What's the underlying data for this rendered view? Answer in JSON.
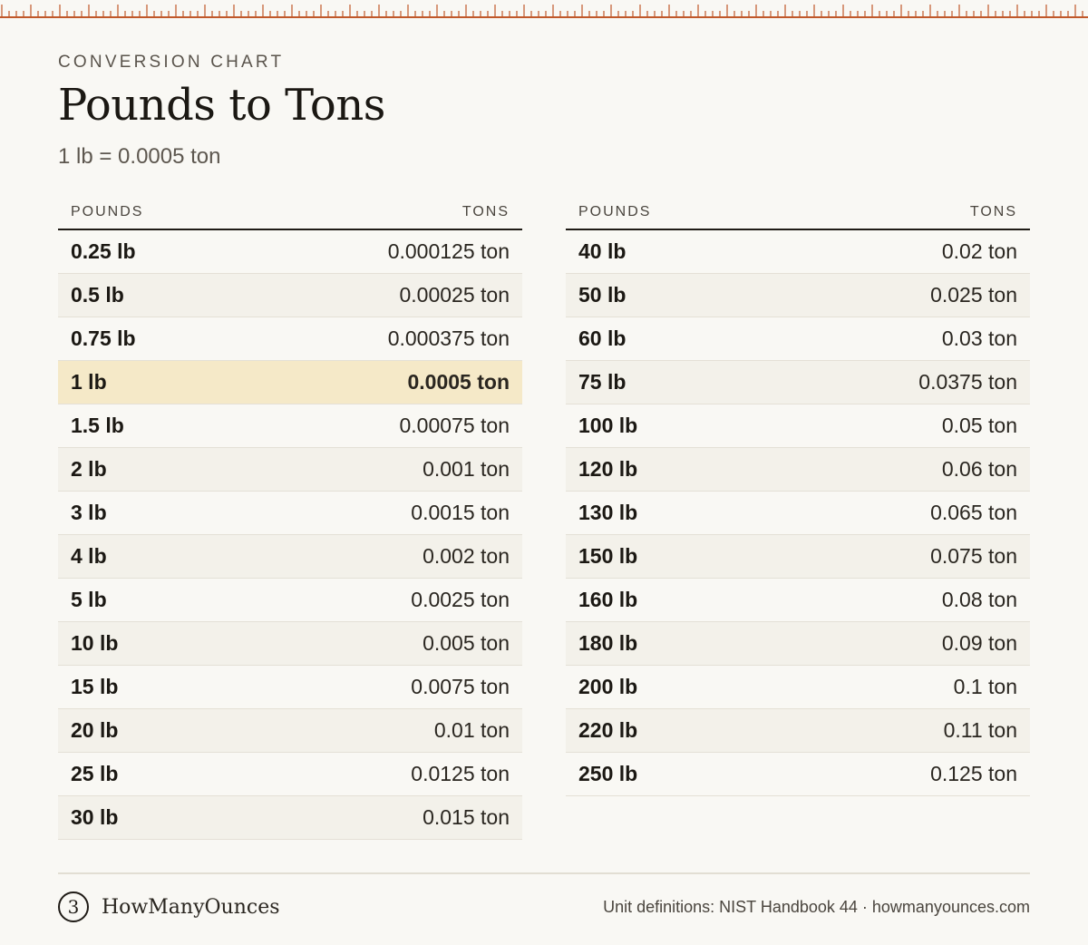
{
  "header": {
    "eyebrow": "CONVERSION CHART",
    "title": "Pounds to Tons",
    "subtitle": "1 lb = 0.0005 ton"
  },
  "accent_color": "#c0582a",
  "highlight_color": "#f5e9c8",
  "tables": {
    "left": {
      "col_pounds": "POUNDS",
      "col_tons": "TONS",
      "rows": [
        {
          "lb": "0.25 lb",
          "ton": "0.000125 ton"
        },
        {
          "lb": "0.5 lb",
          "ton": "0.00025 ton"
        },
        {
          "lb": "0.75 lb",
          "ton": "0.000375 ton"
        },
        {
          "lb": "1 lb",
          "ton": "0.0005 ton"
        },
        {
          "lb": "1.5 lb",
          "ton": "0.00075 ton"
        },
        {
          "lb": "2 lb",
          "ton": "0.001 ton"
        },
        {
          "lb": "3 lb",
          "ton": "0.0015 ton"
        },
        {
          "lb": "4 lb",
          "ton": "0.002 ton"
        },
        {
          "lb": "5 lb",
          "ton": "0.0025 ton"
        },
        {
          "lb": "10 lb",
          "ton": "0.005 ton"
        },
        {
          "lb": "15 lb",
          "ton": "0.0075 ton"
        },
        {
          "lb": "20 lb",
          "ton": "0.01 ton"
        },
        {
          "lb": "25 lb",
          "ton": "0.0125 ton"
        },
        {
          "lb": "30 lb",
          "ton": "0.015 ton"
        }
      ]
    },
    "right": {
      "col_pounds": "POUNDS",
      "col_tons": "TONS",
      "rows": [
        {
          "lb": "40 lb",
          "ton": "0.02 ton"
        },
        {
          "lb": "50 lb",
          "ton": "0.025 ton"
        },
        {
          "lb": "60 lb",
          "ton": "0.03 ton"
        },
        {
          "lb": "75 lb",
          "ton": "0.0375 ton"
        },
        {
          "lb": "100 lb",
          "ton": "0.05 ton"
        },
        {
          "lb": "120 lb",
          "ton": "0.06 ton"
        },
        {
          "lb": "130 lb",
          "ton": "0.065 ton"
        },
        {
          "lb": "150 lb",
          "ton": "0.075 ton"
        },
        {
          "lb": "160 lb",
          "ton": "0.08 ton"
        },
        {
          "lb": "180 lb",
          "ton": "0.09 ton"
        },
        {
          "lb": "200 lb",
          "ton": "0.1 ton"
        },
        {
          "lb": "220 lb",
          "ton": "0.11 ton"
        },
        {
          "lb": "250 lb",
          "ton": "0.125 ton"
        }
      ]
    }
  },
  "footer": {
    "logo_glyph": "3",
    "brand_name": "HowManyOunces",
    "source": "Unit definitions: NIST Handbook 44 · howmanyounces.com"
  }
}
